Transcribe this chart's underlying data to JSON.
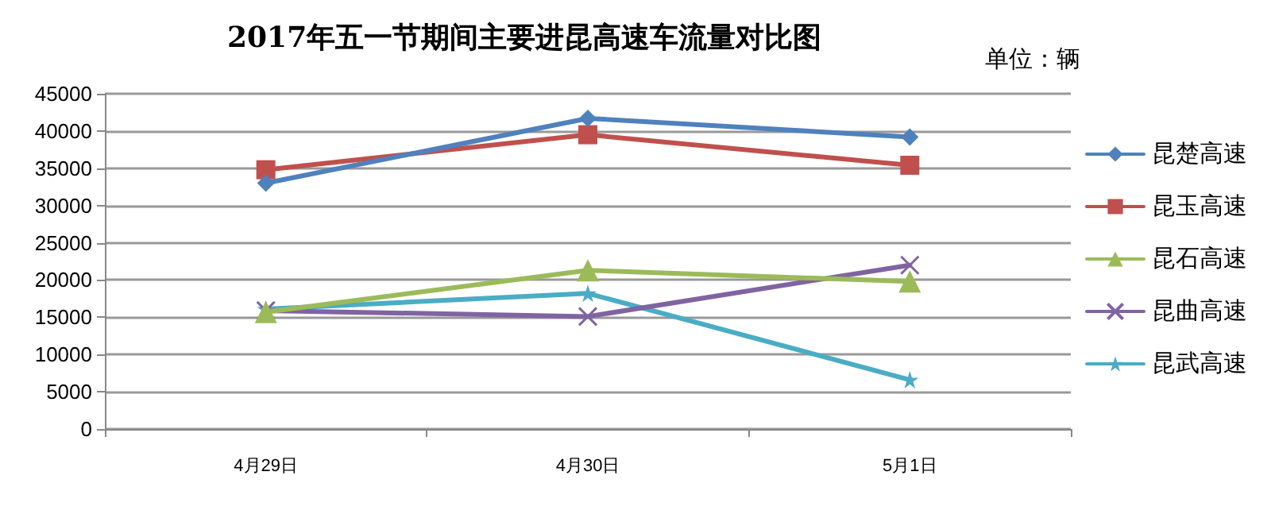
{
  "chart_data": {
    "type": "line",
    "title": "2017年五一节期间主要进昆高速车流量对比图",
    "annotations": [
      "单位：辆"
    ],
    "categories": [
      "4月29日",
      "4月30日",
      "5月1日"
    ],
    "series": [
      {
        "name": "昆楚高速",
        "color": "#4f81bd",
        "marker": "diamond",
        "values": [
          33000,
          41700,
          39200
        ]
      },
      {
        "name": "昆玉高速",
        "color": "#c0504d",
        "marker": "square",
        "values": [
          34800,
          39500,
          35400
        ]
      },
      {
        "name": "昆石高速",
        "color": "#9bbb59",
        "marker": "triangle",
        "values": [
          15700,
          21300,
          19800
        ]
      },
      {
        "name": "昆曲高速",
        "color": "#8064a2",
        "marker": "cross",
        "values": [
          15900,
          15100,
          22000
        ]
      },
      {
        "name": "昆武高速",
        "color": "#4bacc6",
        "marker": "star",
        "values": [
          16100,
          18200,
          6600
        ]
      }
    ],
    "ylim": [
      0,
      45000
    ],
    "yticks": [
      0,
      5000,
      10000,
      15000,
      20000,
      25000,
      30000,
      35000,
      40000,
      45000
    ],
    "grid": "y",
    "legend": "right",
    "line_style": "solid"
  }
}
